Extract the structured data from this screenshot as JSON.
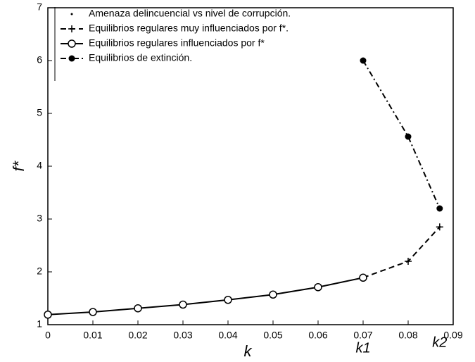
{
  "chart_data": {
    "type": "line",
    "xlabel": "k",
    "ylabel": "f*",
    "x": [
      0,
      0.01,
      0.02,
      0.03,
      0.04,
      0.05,
      0.06,
      0.07,
      0.08,
      0.087
    ],
    "series": [
      {
        "name": "Amenaza delincuencial vs nivel de corrupción.",
        "color": "#000000",
        "line_style": "none",
        "marker": "point",
        "values": [
          1.19,
          1.24,
          1.31,
          1.38,
          1.47,
          1.57,
          1.71,
          1.89,
          2.2,
          2.85
        ]
      },
      {
        "name": "Equilibrios regulares muy influenciados por f*.",
        "color": "#000000",
        "line_style": "dashed",
        "marker": "plus",
        "values": [
          null,
          null,
          null,
          null,
          null,
          null,
          null,
          1.89,
          2.2,
          2.85
        ]
      },
      {
        "name": "Equilibrios regulares influenciados por f*",
        "color": "#000000",
        "line_style": "solid",
        "marker": "open-circle",
        "values": [
          1.19,
          1.24,
          1.31,
          1.38,
          1.47,
          1.57,
          1.71,
          1.89,
          null,
          null
        ]
      },
      {
        "name": "Equilibrios de extinción.",
        "color": "#000000",
        "line_style": "dashdot",
        "marker": "filled-circle",
        "values": [
          null,
          null,
          null,
          null,
          null,
          null,
          null,
          6.0,
          4.56,
          3.2
        ]
      }
    ],
    "annotations": [
      {
        "text": "k1",
        "x": 0.07
      },
      {
        "text": "k2",
        "x": 0.087
      }
    ],
    "xlim": [
      0,
      0.09
    ],
    "ylim": [
      1,
      7
    ],
    "xticks": [
      0,
      0.01,
      0.02,
      0.03,
      0.04,
      0.05,
      0.06,
      0.07,
      0.08,
      0.09
    ],
    "yticks": [
      1,
      2,
      3,
      4,
      5,
      6,
      7
    ],
    "legend": "upper-left"
  }
}
